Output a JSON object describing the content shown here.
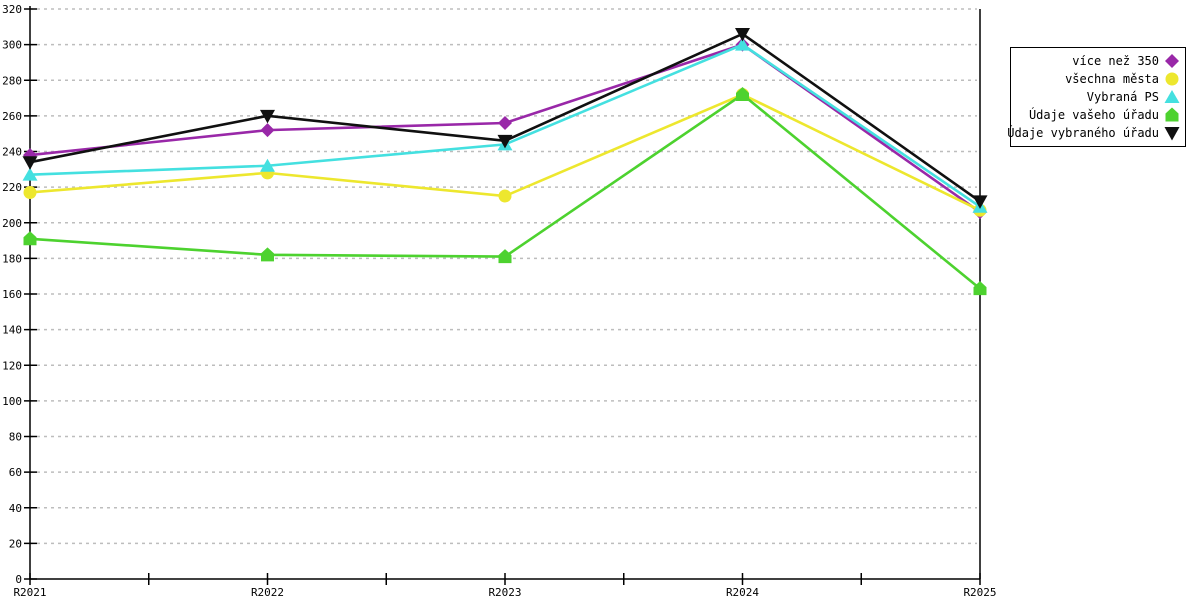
{
  "chart_data": {
    "type": "line",
    "title": "",
    "xlabel": "",
    "ylabel": "",
    "categories": [
      "R2021",
      "R2022",
      "R2023",
      "R2024",
      "R2025"
    ],
    "series": [
      {
        "name": "více než 350",
        "color": "#9928A8",
        "marker": "diamond",
        "values": [
          238,
          252,
          256,
          300,
          206
        ]
      },
      {
        "name": "všechna města",
        "color": "#EDE72E",
        "marker": "circle",
        "values": [
          217,
          228,
          215,
          272,
          207
        ]
      },
      {
        "name": "Vybraná PS",
        "color": "#44E0E0",
        "marker": "triangle-up",
        "values": [
          227,
          232,
          244,
          300,
          209
        ]
      },
      {
        "name": "Údaje vašeho úřadu",
        "color": "#4DD22F",
        "marker": "house",
        "values": [
          191,
          182,
          181,
          272,
          163
        ]
      },
      {
        "name": "Údaje vybraného úřadu",
        "color": "#101010",
        "marker": "triangle-down",
        "values": [
          234,
          260,
          246,
          306,
          212
        ]
      }
    ],
    "ylim": [
      0,
      320
    ],
    "ytick_step": 20,
    "grid": "horizontal-dashed",
    "grid_color": "#bdbdbd",
    "axis_color": "#000000",
    "legend_position": "top-right",
    "x_minor_ticks": "midpoints"
  }
}
